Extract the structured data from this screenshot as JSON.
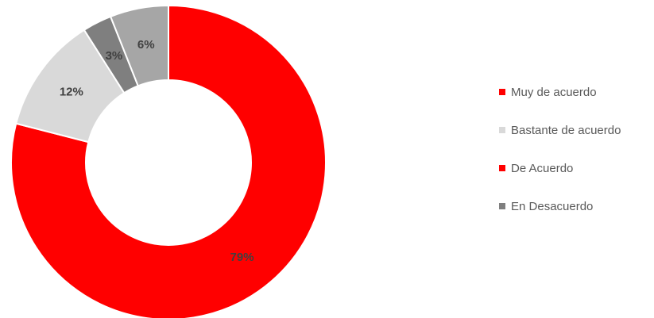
{
  "chart_data": {
    "type": "pie",
    "variant": "donut",
    "title": "",
    "legend_position": "right",
    "segments": [
      {
        "label": "Muy de acuerdo",
        "value": 79,
        "display": "79%",
        "color": "#ff0000"
      },
      {
        "label": "Bastante de acuerdo",
        "value": 12,
        "display": "12%",
        "color": "#d9d9d9"
      },
      {
        "label": "De Acuerdo",
        "value": 0,
        "display": "",
        "color": "#ff0000"
      },
      {
        "label": "En Desacuerdo",
        "value": 3,
        "display": "3%",
        "color": "#7f7f7f"
      },
      {
        "label": "",
        "value": 6,
        "display": "6%",
        "color": "#a6a6a6"
      }
    ]
  }
}
